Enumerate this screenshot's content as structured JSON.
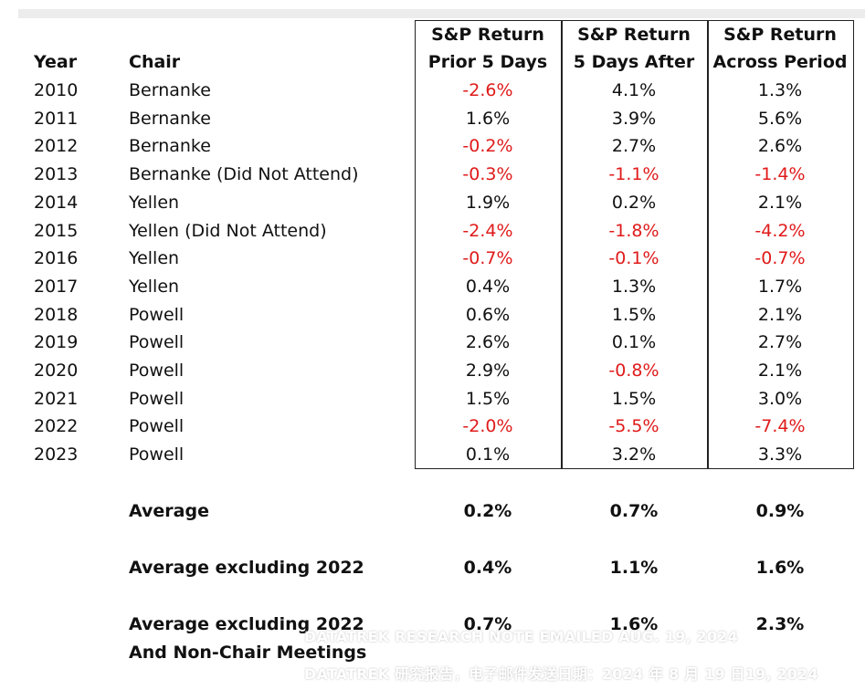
{
  "headers": {
    "year": "Year",
    "chair": "Chair",
    "col1": [
      "S&P Return",
      "Prior 5 Days"
    ],
    "col2": [
      "S&P Return",
      "5 Days After"
    ],
    "col3": [
      "S&P Return",
      "Across Period"
    ]
  },
  "rows": [
    {
      "year": "2010",
      "chair": "Bernanke",
      "prior": "-2.6%",
      "after": "4.1%",
      "across": "1.3%"
    },
    {
      "year": "2011",
      "chair": "Bernanke",
      "prior": "1.6%",
      "after": "3.9%",
      "across": "5.6%"
    },
    {
      "year": "2012",
      "chair": "Bernanke",
      "prior": "-0.2%",
      "after": "2.7%",
      "across": "2.6%"
    },
    {
      "year": "2013",
      "chair": "Bernanke (Did Not Attend)",
      "prior": "-0.3%",
      "after": "-1.1%",
      "across": "-1.4%"
    },
    {
      "year": "2014",
      "chair": "Yellen",
      "prior": "1.9%",
      "after": "0.2%",
      "across": "2.1%"
    },
    {
      "year": "2015",
      "chair": "Yellen (Did Not Attend)",
      "prior": "-2.4%",
      "after": "-1.8%",
      "across": "-4.2%"
    },
    {
      "year": "2016",
      "chair": "Yellen",
      "prior": "-0.7%",
      "after": "-0.1%",
      "across": "-0.7%"
    },
    {
      "year": "2017",
      "chair": "Yellen",
      "prior": "0.4%",
      "after": "1.3%",
      "across": "1.7%"
    },
    {
      "year": "2018",
      "chair": "Powell",
      "prior": "0.6%",
      "after": "1.5%",
      "across": "2.1%"
    },
    {
      "year": "2019",
      "chair": "Powell",
      "prior": "2.6%",
      "after": "0.1%",
      "across": "2.7%"
    },
    {
      "year": "2020",
      "chair": "Powell",
      "prior": "2.9%",
      "after": "-0.8%",
      "across": "2.1%"
    },
    {
      "year": "2021",
      "chair": "Powell",
      "prior": "1.5%",
      "after": "1.5%",
      "across": "3.0%"
    },
    {
      "year": "2022",
      "chair": "Powell",
      "prior": "-2.0%",
      "after": "-5.5%",
      "across": "-7.4%"
    },
    {
      "year": "2023",
      "chair": "Powell",
      "prior": "0.1%",
      "after": "3.2%",
      "across": "3.3%"
    }
  ],
  "summary": [
    {
      "label": "Average",
      "prior": "0.2%",
      "after": "0.7%",
      "across": "0.9%"
    },
    {
      "label": "Average excluding 2022",
      "prior": "0.4%",
      "after": "1.1%",
      "across": "1.6%"
    },
    {
      "label": "Average excluding 2022",
      "label2": "And Non-Chair Meetings",
      "prior": "0.7%",
      "after": "1.6%",
      "across": "2.3%"
    }
  ],
  "watermark": {
    "line1": "DATATREK RESEARCH NOTE EMAILED AUG. 19, 2024",
    "line2": "DATATREK 研究报告，电子邮件发送日期：2024 年 8 月 19 日19, 2024"
  },
  "colors": {
    "negative": "#e01a1a",
    "text": "#111111",
    "border": "#222222"
  }
}
